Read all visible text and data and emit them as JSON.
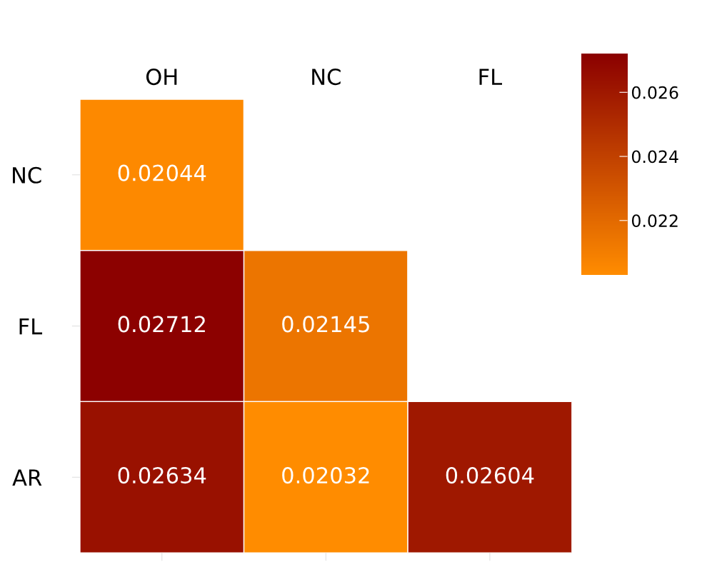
{
  "chart_data": {
    "type": "heatmap",
    "categories": [
      "OH",
      "NC",
      "FL"
    ],
    "y_categories": [
      "NC",
      "FL",
      "AR"
    ],
    "cells": [
      [
        0.02044,
        null,
        null
      ],
      [
        0.02712,
        0.02145,
        null
      ],
      [
        0.02634,
        0.02032,
        0.02604
      ]
    ],
    "colors": [
      "#ff8c00",
      "#8b0000"
    ],
    "clim": [
      0.0203,
      0.0272
    ],
    "cticks": [
      0.022,
      0.024,
      0.026
    ],
    "data_labels": true
  }
}
